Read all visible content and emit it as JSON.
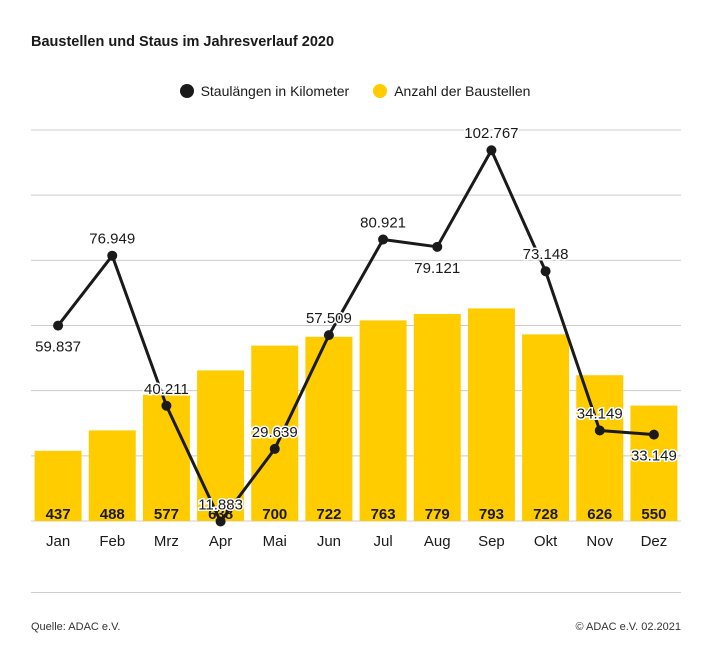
{
  "title": "Baustellen und Staus im Jahresverlauf 2020",
  "legend": {
    "line_label": "Staulängen in Kilometer",
    "bar_label": "Anzahl der Baustellen"
  },
  "footer": {
    "source": "Quelle: ADAC e.V.",
    "copyright": "© ADAC e.V. 02.2021"
  },
  "colors": {
    "bar": "#ffcc00",
    "line": "#1a1a1a",
    "grid": "#cccccc",
    "text": "#1a1a1a"
  },
  "chart_data": {
    "type": "bar+line",
    "categories": [
      "Jan",
      "Feb",
      "Mrz",
      "Apr",
      "Mai",
      "Jun",
      "Jul",
      "Aug",
      "Sep",
      "Okt",
      "Nov",
      "Dez"
    ],
    "series": [
      {
        "name": "Anzahl der Baustellen",
        "type": "bar",
        "values": [
          437,
          488,
          577,
          638,
          700,
          722,
          763,
          779,
          793,
          728,
          626,
          550
        ],
        "labels": [
          "437",
          "488",
          "577",
          "638",
          "700",
          "722",
          "763",
          "779",
          "793",
          "728",
          "626",
          "550"
        ]
      },
      {
        "name": "Staulängen in Kilometer",
        "type": "line",
        "values": [
          59837,
          76949,
          40211,
          11883,
          29639,
          57509,
          80921,
          79121,
          102767,
          73148,
          34149,
          33149
        ],
        "labels": [
          "59.837",
          "76.949",
          "40.211",
          "11.883",
          "29.639",
          "57.509",
          "80.921",
          "79.121",
          "102.767",
          "73.148",
          "34.149",
          "33.149"
        ]
      }
    ],
    "gridlines": 6,
    "legend_position": "top-center"
  }
}
